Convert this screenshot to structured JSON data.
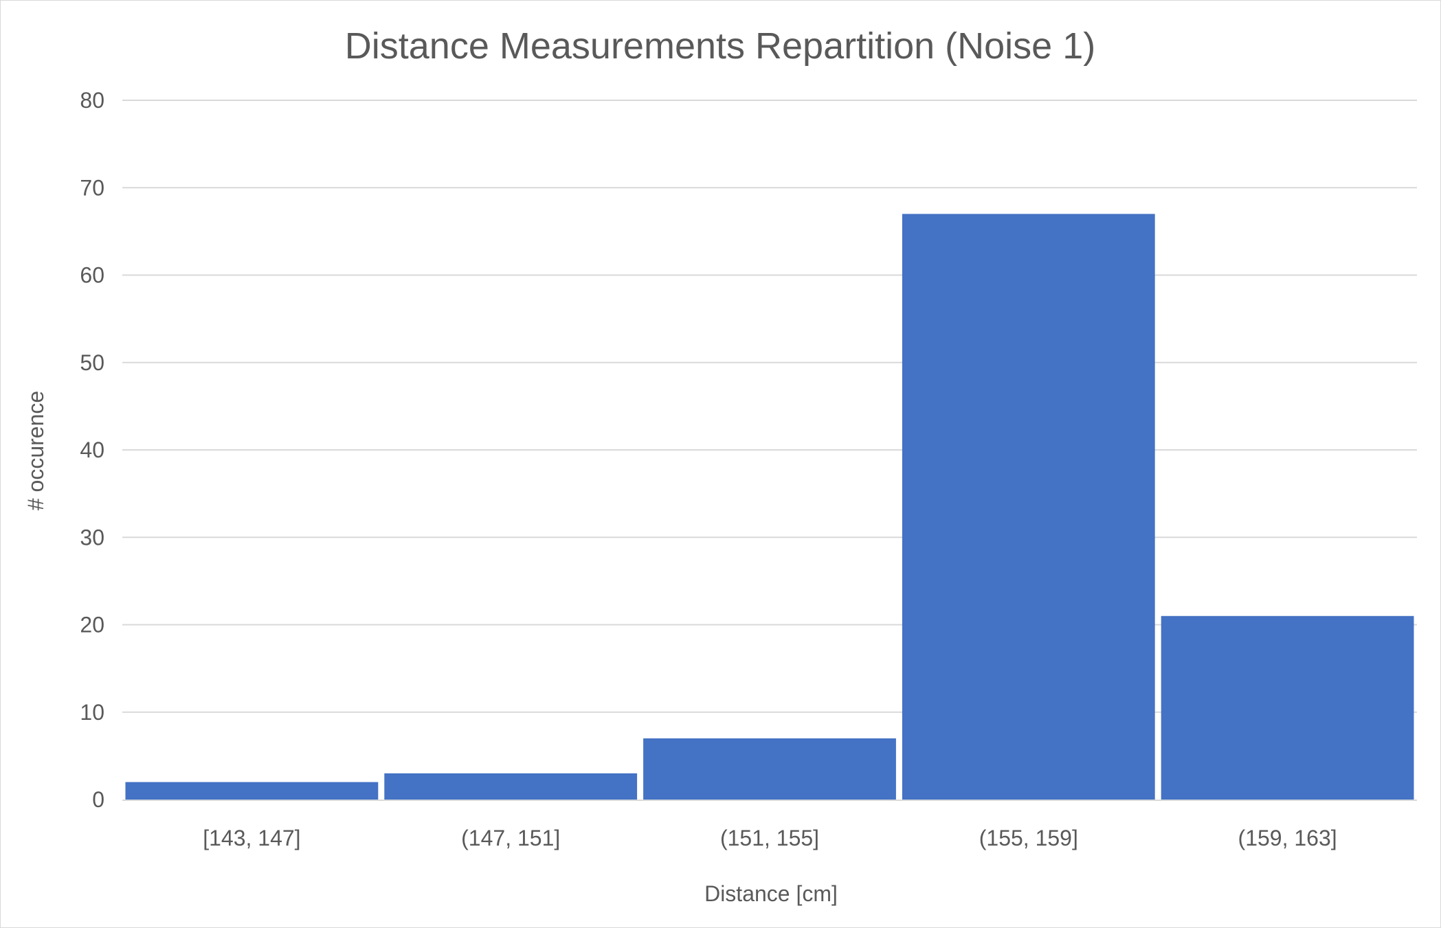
{
  "chart_data": {
    "type": "bar",
    "title": "Distance Measurements Repartition (Noise 1)",
    "xlabel": "Distance [cm]",
    "ylabel": "# occurence",
    "categories": [
      "[143, 147]",
      "(147, 151]",
      "(151, 155]",
      "(155, 159]",
      "(159, 163]"
    ],
    "values": [
      2,
      3,
      7,
      67,
      21
    ],
    "ylim": [
      0,
      80
    ],
    "yticks": [
      "0",
      "10",
      "20",
      "30",
      "40",
      "50",
      "60",
      "70",
      "80"
    ],
    "grid": true,
    "legend": "none",
    "colors": {
      "bar": "#4472C4",
      "grid": "#d9d9d9",
      "text": "#595959"
    }
  }
}
